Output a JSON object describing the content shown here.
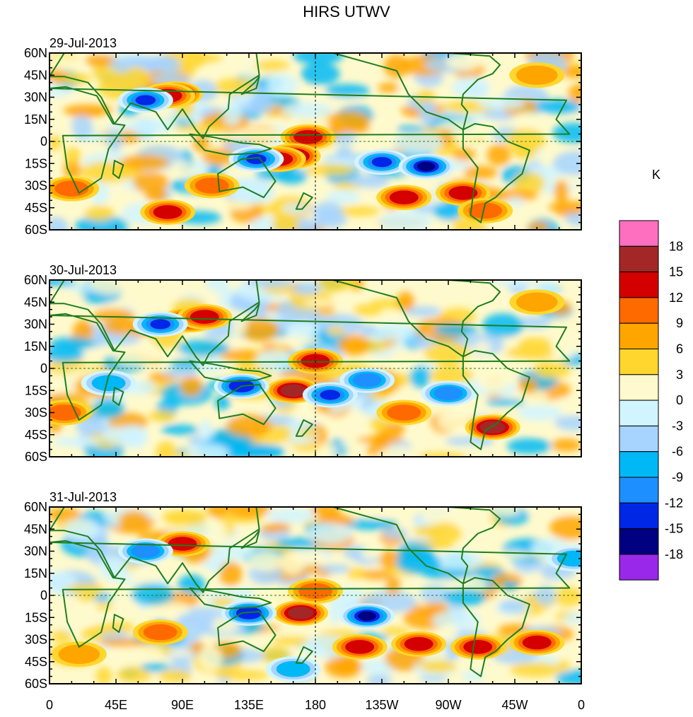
{
  "chart_data": {
    "type": "heatmap",
    "title": "HIRS UTWV",
    "colorbar": {
      "unit": "K",
      "levels": [
        "18",
        "15",
        "12",
        "9",
        "6",
        "3",
        "0",
        "-3",
        "-6",
        "-9",
        "-12",
        "-15",
        "-18"
      ],
      "colors": [
        "#ff6fc0",
        "#a32727",
        "#d40000",
        "#ff6a00",
        "#ffa500",
        "#ffd62e",
        "#fffacd",
        "#d1f5ff",
        "#a6d3ff",
        "#00b8f5",
        "#1e8fff",
        "#0026e6",
        "#000080",
        "#9a28ea"
      ]
    },
    "x_ticks": [
      "0",
      "45E",
      "90E",
      "135E",
      "180",
      "135W",
      "90W",
      "45W",
      "0"
    ],
    "y_ticks": [
      "60N",
      "45N",
      "30N",
      "15N",
      "0",
      "15S",
      "30S",
      "45S",
      "60S"
    ],
    "xlim": [
      0,
      360
    ],
    "ylim": [
      -60,
      60
    ],
    "panels": [
      {
        "date": "29-Jul-2013",
        "features": [
          {
            "lon": 85,
            "lat": 32,
            "value": 19
          },
          {
            "lon": 80,
            "lat": 31,
            "value": 14
          },
          {
            "lon": 175,
            "lat": 3,
            "value": 14
          },
          {
            "lon": 165,
            "lat": -10,
            "value": 15
          },
          {
            "lon": 155,
            "lat": -12,
            "value": 12
          },
          {
            "lon": 240,
            "lat": -38,
            "value": 12
          },
          {
            "lon": 280,
            "lat": -35,
            "value": 14
          },
          {
            "lon": 295,
            "lat": -47,
            "value": 9
          },
          {
            "lon": 80,
            "lat": -48,
            "value": 12
          },
          {
            "lon": 225,
            "lat": -14,
            "value": -13
          },
          {
            "lon": 255,
            "lat": -17,
            "value": -16
          },
          {
            "lon": 140,
            "lat": -12,
            "value": -13
          },
          {
            "lon": 65,
            "lat": 28,
            "value": -13
          },
          {
            "lon": 15,
            "lat": -32,
            "value": 9
          },
          {
            "lon": 330,
            "lat": 45,
            "value": 6
          },
          {
            "lon": 110,
            "lat": -30,
            "value": 9
          }
        ]
      },
      {
        "date": "30-Jul-2013",
        "features": [
          {
            "lon": 95,
            "lat": 33,
            "value": 15
          },
          {
            "lon": 105,
            "lat": 35,
            "value": 12
          },
          {
            "lon": 165,
            "lat": -15,
            "value": 17
          },
          {
            "lon": 180,
            "lat": 5,
            "value": 12
          },
          {
            "lon": 300,
            "lat": -40,
            "value": 15
          },
          {
            "lon": 240,
            "lat": -30,
            "value": 9
          },
          {
            "lon": 75,
            "lat": 30,
            "value": -14
          },
          {
            "lon": 130,
            "lat": -12,
            "value": -15
          },
          {
            "lon": 215,
            "lat": -8,
            "value": -12
          },
          {
            "lon": 190,
            "lat": -18,
            "value": -13
          },
          {
            "lon": 270,
            "lat": -17,
            "value": -12
          },
          {
            "lon": 40,
            "lat": -10,
            "value": -9
          },
          {
            "lon": 10,
            "lat": -30,
            "value": 9
          },
          {
            "lon": 330,
            "lat": 45,
            "value": 6
          }
        ]
      },
      {
        "date": "31-Jul-2013",
        "features": [
          {
            "lon": 90,
            "lat": 35,
            "value": 12
          },
          {
            "lon": 170,
            "lat": -12,
            "value": 15
          },
          {
            "lon": 180,
            "lat": 3,
            "value": 9
          },
          {
            "lon": 215,
            "lat": -14,
            "value": -17
          },
          {
            "lon": 210,
            "lat": -35,
            "value": 12
          },
          {
            "lon": 250,
            "lat": -33,
            "value": 14
          },
          {
            "lon": 290,
            "lat": -35,
            "value": 12
          },
          {
            "lon": 330,
            "lat": -32,
            "value": 12
          },
          {
            "lon": 135,
            "lat": -12,
            "value": -15
          },
          {
            "lon": 65,
            "lat": 30,
            "value": -12
          },
          {
            "lon": 165,
            "lat": -50,
            "value": -9
          },
          {
            "lon": 75,
            "lat": -25,
            "value": 9
          },
          {
            "lon": 355,
            "lat": 25,
            "value": -9
          },
          {
            "lon": 20,
            "lat": -40,
            "value": 6
          }
        ]
      }
    ]
  }
}
